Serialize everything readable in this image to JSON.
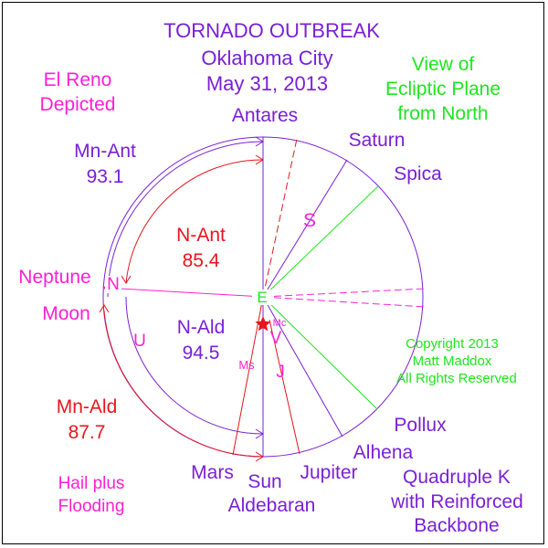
{
  "title": {
    "line1": "TORNADO OUTBREAK",
    "line2": "Oklahoma City",
    "line3": "May 31, 2013"
  },
  "note_left": {
    "line1": "El Reno",
    "line2": "Depicted"
  },
  "view_label": {
    "line1": "View of",
    "line2": "Ecliptic Plane",
    "line3": "from North"
  },
  "copyright": {
    "line1": "Copyright 2013",
    "line2": "Matt Maddox",
    "line3": "All Rights Reserved"
  },
  "hazard_note": {
    "line1": "Hail plus",
    "line2": "Flooding"
  },
  "storm_type": {
    "line1": "Quadruple K",
    "line2": "with Reinforced",
    "line3": "Backbone"
  },
  "angles": {
    "mn_ant": {
      "label": "Mn-Ant",
      "value": "93.1"
    },
    "n_ant": {
      "label": "N-Ant",
      "value": "85.4"
    },
    "n_ald": {
      "label": "N-Ald",
      "value": "94.5"
    },
    "mn_ald": {
      "label": "Mn-Ald",
      "value": "87.7"
    }
  },
  "bodies": {
    "antares": "Antares",
    "saturn": "Saturn",
    "spica": "Spica",
    "neptune": "Neptune",
    "moon": "Moon",
    "pollux": "Pollux",
    "alhena": "Alhena",
    "mars": "Mars",
    "sun": "Sun",
    "jupiter": "Jupiter",
    "aldebaran": "Aldebaran"
  },
  "markers": {
    "earth": "E",
    "mercury": "Mc",
    "venus": "V",
    "jupiter": "J",
    "saturn": "S",
    "neptune": "N",
    "uranus": "U",
    "mars": "Ms"
  },
  "colors": {
    "purple": "#7a1fd6",
    "magenta": "#ff1fd6",
    "red": "#e8161c",
    "green": "#1ee61e",
    "black": "#000000"
  }
}
